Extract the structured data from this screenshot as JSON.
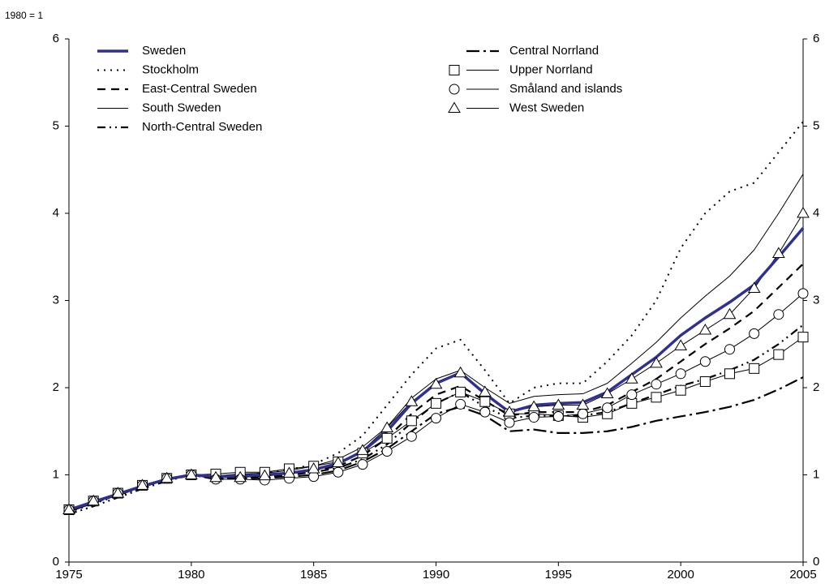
{
  "chart_data": {
    "type": "line",
    "y_label": "1980 = 1",
    "x": [
      1975,
      1976,
      1977,
      1978,
      1979,
      1980,
      1981,
      1982,
      1983,
      1984,
      1985,
      1986,
      1987,
      1988,
      1989,
      1990,
      1991,
      1992,
      1993,
      1994,
      1995,
      1996,
      1997,
      1998,
      1999,
      2000,
      2001,
      2002,
      2003,
      2004,
      2005
    ],
    "xlim": [
      1975,
      2005
    ],
    "xticks": [
      1975,
      1980,
      1985,
      1990,
      1995,
      2000,
      2005
    ],
    "ylim": [
      0,
      6
    ],
    "yticks": [
      0,
      1,
      2,
      3,
      4,
      5,
      6
    ],
    "y2lim": [
      0,
      6
    ],
    "y2ticks": [
      0,
      1,
      2,
      3,
      4,
      5,
      6
    ],
    "series": [
      {
        "name": "Sweden",
        "color": "#2e3192",
        "line": "thick",
        "marker": "none",
        "values": [
          0.6,
          0.69,
          0.78,
          0.87,
          0.95,
          1.0,
          0.98,
          0.99,
          1.0,
          1.02,
          1.06,
          1.13,
          1.27,
          1.5,
          1.82,
          2.05,
          2.17,
          1.93,
          1.72,
          1.8,
          1.82,
          1.83,
          1.95,
          2.15,
          2.35,
          2.6,
          2.8,
          2.98,
          3.18,
          3.5,
          3.83
        ]
      },
      {
        "name": "Stockholm",
        "color": "#000000",
        "line": "dotted",
        "marker": "none",
        "values": [
          0.57,
          0.67,
          0.76,
          0.86,
          0.95,
          1.0,
          0.98,
          1.0,
          1.02,
          1.06,
          1.12,
          1.25,
          1.45,
          1.8,
          2.15,
          2.45,
          2.55,
          2.2,
          1.82,
          2.0,
          2.05,
          2.05,
          2.3,
          2.6,
          3.0,
          3.6,
          4.0,
          4.25,
          4.35,
          4.7,
          5.05
        ]
      },
      {
        "name": "East-Central Sweden",
        "color": "#000000",
        "line": "dashed",
        "marker": "none",
        "values": [
          0.58,
          0.68,
          0.77,
          0.86,
          0.95,
          1.0,
          0.97,
          0.98,
          0.99,
          1.02,
          1.05,
          1.1,
          1.22,
          1.42,
          1.7,
          1.92,
          2.02,
          1.85,
          1.68,
          1.72,
          1.72,
          1.72,
          1.8,
          1.95,
          2.1,
          2.3,
          2.5,
          2.68,
          2.88,
          3.15,
          3.42
        ]
      },
      {
        "name": "South Sweden",
        "color": "#000000",
        "line": "solid",
        "marker": "none",
        "values": [
          0.6,
          0.7,
          0.79,
          0.88,
          0.96,
          1.0,
          0.99,
          1.01,
          1.02,
          1.05,
          1.1,
          1.18,
          1.32,
          1.55,
          1.88,
          2.1,
          2.2,
          2.0,
          1.82,
          1.9,
          1.92,
          1.93,
          2.05,
          2.28,
          2.52,
          2.8,
          3.05,
          3.28,
          3.58,
          4.0,
          4.45
        ]
      },
      {
        "name": "North-Central Sweden",
        "color": "#000000",
        "line": "dash-dot-dot",
        "marker": "none",
        "values": [
          0.55,
          0.64,
          0.74,
          0.84,
          0.93,
          1.0,
          0.96,
          0.97,
          0.97,
          1.0,
          1.03,
          1.08,
          1.18,
          1.35,
          1.6,
          1.82,
          1.95,
          1.78,
          1.65,
          1.68,
          1.68,
          1.68,
          1.72,
          1.82,
          1.92,
          2.02,
          2.1,
          2.2,
          2.32,
          2.5,
          2.72
        ]
      },
      {
        "name": "Central Norrland",
        "color": "#000000",
        "line": "dash-dot",
        "marker": "none",
        "values": [
          0.58,
          0.68,
          0.77,
          0.86,
          0.95,
          1.0,
          0.95,
          0.96,
          0.96,
          0.98,
          1.0,
          1.05,
          1.15,
          1.3,
          1.5,
          1.7,
          1.78,
          1.68,
          1.5,
          1.52,
          1.48,
          1.48,
          1.5,
          1.55,
          1.62,
          1.67,
          1.72,
          1.78,
          1.86,
          1.98,
          2.12
        ]
      },
      {
        "name": "Upper Norrland",
        "color": "#000000",
        "line": "solid",
        "marker": "square",
        "values": [
          0.6,
          0.7,
          0.79,
          0.88,
          0.96,
          1.0,
          1.01,
          1.03,
          1.03,
          1.07,
          1.1,
          1.15,
          1.25,
          1.42,
          1.62,
          1.82,
          1.95,
          1.84,
          1.7,
          1.7,
          1.68,
          1.66,
          1.7,
          1.82,
          1.89,
          1.97,
          2.07,
          2.16,
          2.22,
          2.38,
          2.58
        ]
      },
      {
        "name": "Småland and islands",
        "color": "#000000",
        "line": "solid",
        "marker": "circle",
        "values": [
          0.6,
          0.7,
          0.79,
          0.88,
          0.96,
          1.0,
          0.95,
          0.95,
          0.94,
          0.96,
          0.98,
          1.03,
          1.12,
          1.27,
          1.44,
          1.65,
          1.81,
          1.72,
          1.6,
          1.66,
          1.67,
          1.7,
          1.77,
          1.92,
          2.04,
          2.16,
          2.3,
          2.44,
          2.62,
          2.84,
          3.08
        ]
      },
      {
        "name": "West Sweden",
        "color": "#000000",
        "line": "solid",
        "marker": "triangle",
        "values": [
          0.6,
          0.7,
          0.79,
          0.88,
          0.96,
          1.0,
          0.97,
          0.97,
          0.99,
          1.02,
          1.07,
          1.14,
          1.28,
          1.54,
          1.84,
          2.04,
          2.17,
          1.95,
          1.72,
          1.78,
          1.8,
          1.8,
          1.93,
          2.1,
          2.28,
          2.48,
          2.66,
          2.84,
          3.14,
          3.54,
          4.0
        ]
      }
    ]
  }
}
